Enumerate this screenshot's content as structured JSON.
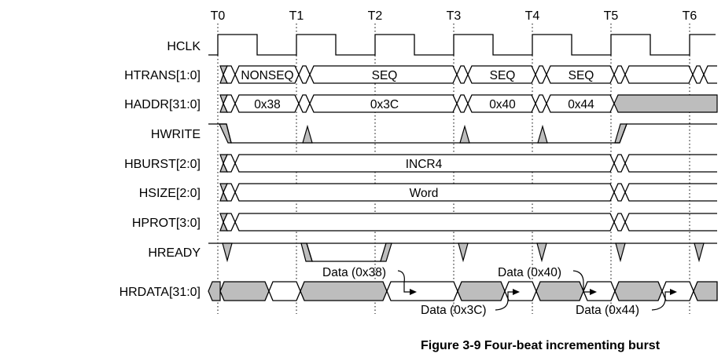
{
  "time_labels": [
    "T0",
    "T1",
    "T2",
    "T3",
    "T4",
    "T5",
    "T6"
  ],
  "signal_names": [
    "HCLK",
    "HTRANS[1:0]",
    "HADDR[31:0]",
    "HWRITE",
    "HBURST[2:0]",
    "HSIZE[2:0]",
    "HPROT[3:0]",
    "HREADY",
    "HRDATA[31:0]"
  ],
  "htrans_values": [
    "NONSEQ",
    "SEQ",
    "SEQ",
    "SEQ"
  ],
  "haddr_values": [
    "0x38",
    "0x3C",
    "0x40",
    "0x44"
  ],
  "hburst_value": "INCR4",
  "hsize_value": "Word",
  "data_annotations": [
    "Data (0x38)",
    "Data (0x3C)",
    "Data (0x40)",
    "Data (0x44)"
  ],
  "caption": "Figure 3-9 Four-beat incrementing burst",
  "colors": {
    "shade": "#bdbdbd",
    "line": "#000000"
  }
}
